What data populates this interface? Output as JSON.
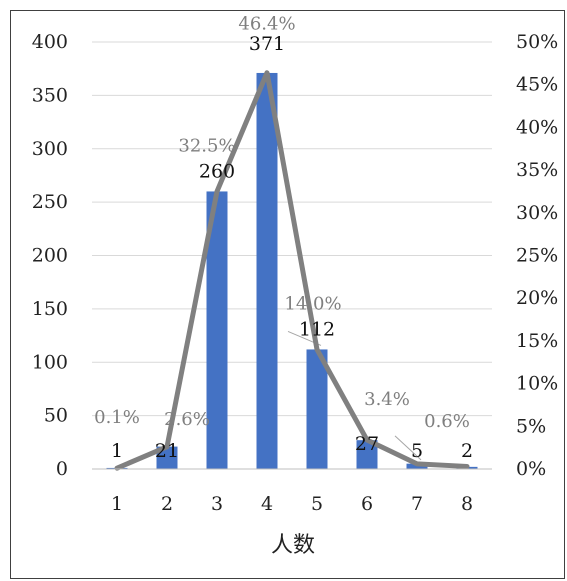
{
  "chart_data": {
    "type": "bar",
    "categories": [
      "1",
      "2",
      "3",
      "4",
      "5",
      "6",
      "7",
      "8"
    ],
    "series": [
      {
        "type": "bar",
        "axis": "left",
        "color": "#4472c4",
        "values": [
          1,
          21,
          260,
          371,
          112,
          27,
          5,
          2
        ],
        "data_labels": [
          "1",
          "21",
          "260",
          "371",
          "112",
          "27",
          "5",
          "2"
        ]
      },
      {
        "type": "line",
        "axis": "right",
        "color": "#808080",
        "values": [
          0.1,
          2.6,
          32.5,
          46.4,
          14.0,
          3.4,
          0.6,
          0.3
        ],
        "data_labels": [
          "0.1%",
          "2.6%",
          "32.5%",
          "46.4%",
          "14.0%",
          "3.4%",
          "0.6%",
          ""
        ]
      }
    ],
    "title": "",
    "xlabel": "人数",
    "ylabel": "",
    "ylim": [
      0,
      400
    ],
    "yticks": [
      "0",
      "50",
      "100",
      "150",
      "200",
      "250",
      "300",
      "350",
      "400"
    ],
    "y2lim": [
      0,
      50
    ],
    "y2ticks": [
      "0%",
      "5%",
      "10%",
      "15%",
      "20%",
      "25%",
      "30%",
      "35%",
      "40%",
      "45%",
      "50%"
    ],
    "grid": true,
    "legend": "none"
  }
}
